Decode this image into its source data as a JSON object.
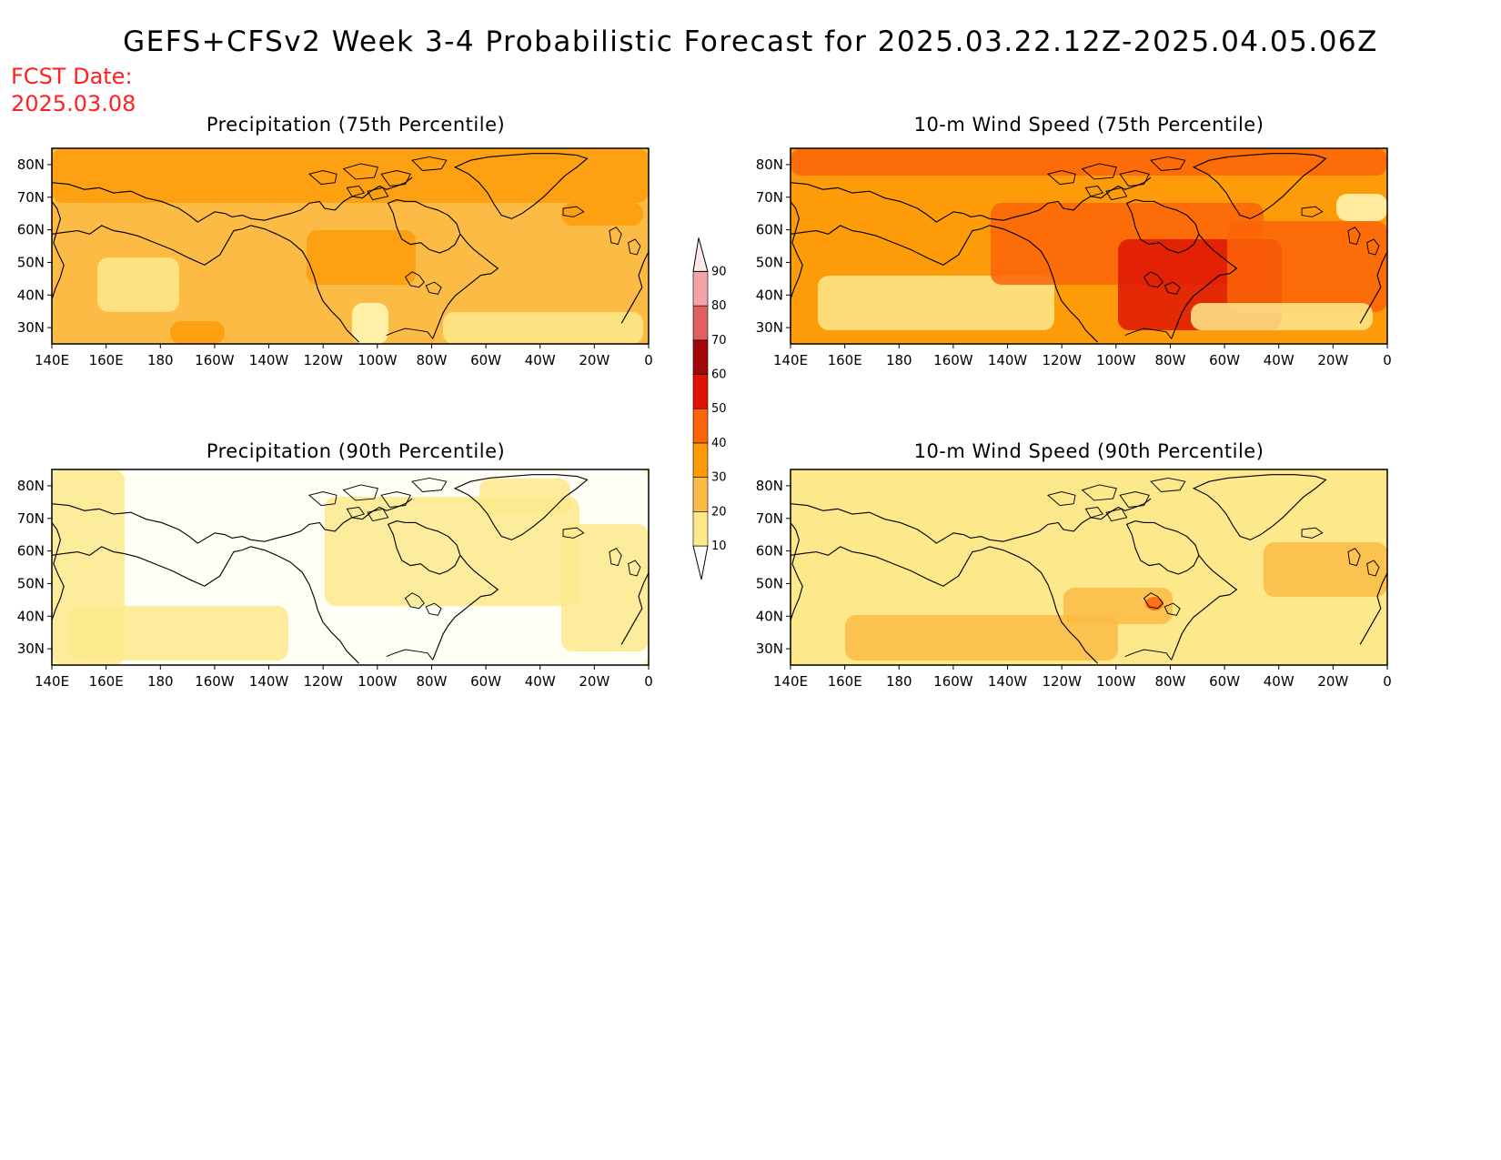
{
  "header": {
    "title": "GEFS+CFSv2 Week 3-4 Probabilistic Forecast for 2025.03.22.12Z-2025.04.05.06Z",
    "fcst_label": "FCST Date:",
    "fcst_date": "2025.03.08"
  },
  "axes": {
    "lon_ticks": [
      "140E",
      "160E",
      "180",
      "160W",
      "140W",
      "120W",
      "100W",
      "80W",
      "60W",
      "40W",
      "20W",
      "0"
    ],
    "lat_ticks": [
      "80N",
      "70N",
      "60N",
      "50N",
      "40N",
      "30N"
    ],
    "lon_range": [
      140,
      360
    ],
    "lat_range": [
      25,
      85
    ]
  },
  "colorbar": {
    "levels": [
      10,
      20,
      30,
      40,
      50,
      60,
      70,
      80,
      90
    ],
    "labels": [
      "10",
      "20",
      "30",
      "40",
      "50",
      "60",
      "70",
      "80",
      "90"
    ],
    "colors": [
      "#fff8b8",
      "#fde98c",
      "#fcbb44",
      "#fd9b08",
      "#fb6408",
      "#de1505",
      "#a20808",
      "#e06060",
      "#f3a4a8",
      "#fde8ea"
    ]
  },
  "panels": [
    {
      "id": "precip-75",
      "title": "Precipitation (75th Percentile)",
      "base_level": 2
    },
    {
      "id": "wind-75",
      "title": "10-m Wind Speed (75th Percentile)",
      "base_level": 3
    },
    {
      "id": "precip-90",
      "title": "Precipitation (90th Percentile)",
      "base_level": 0
    },
    {
      "id": "wind-90",
      "title": "10-m Wind Speed (90th Percentile)",
      "base_level": 1
    }
  ]
}
